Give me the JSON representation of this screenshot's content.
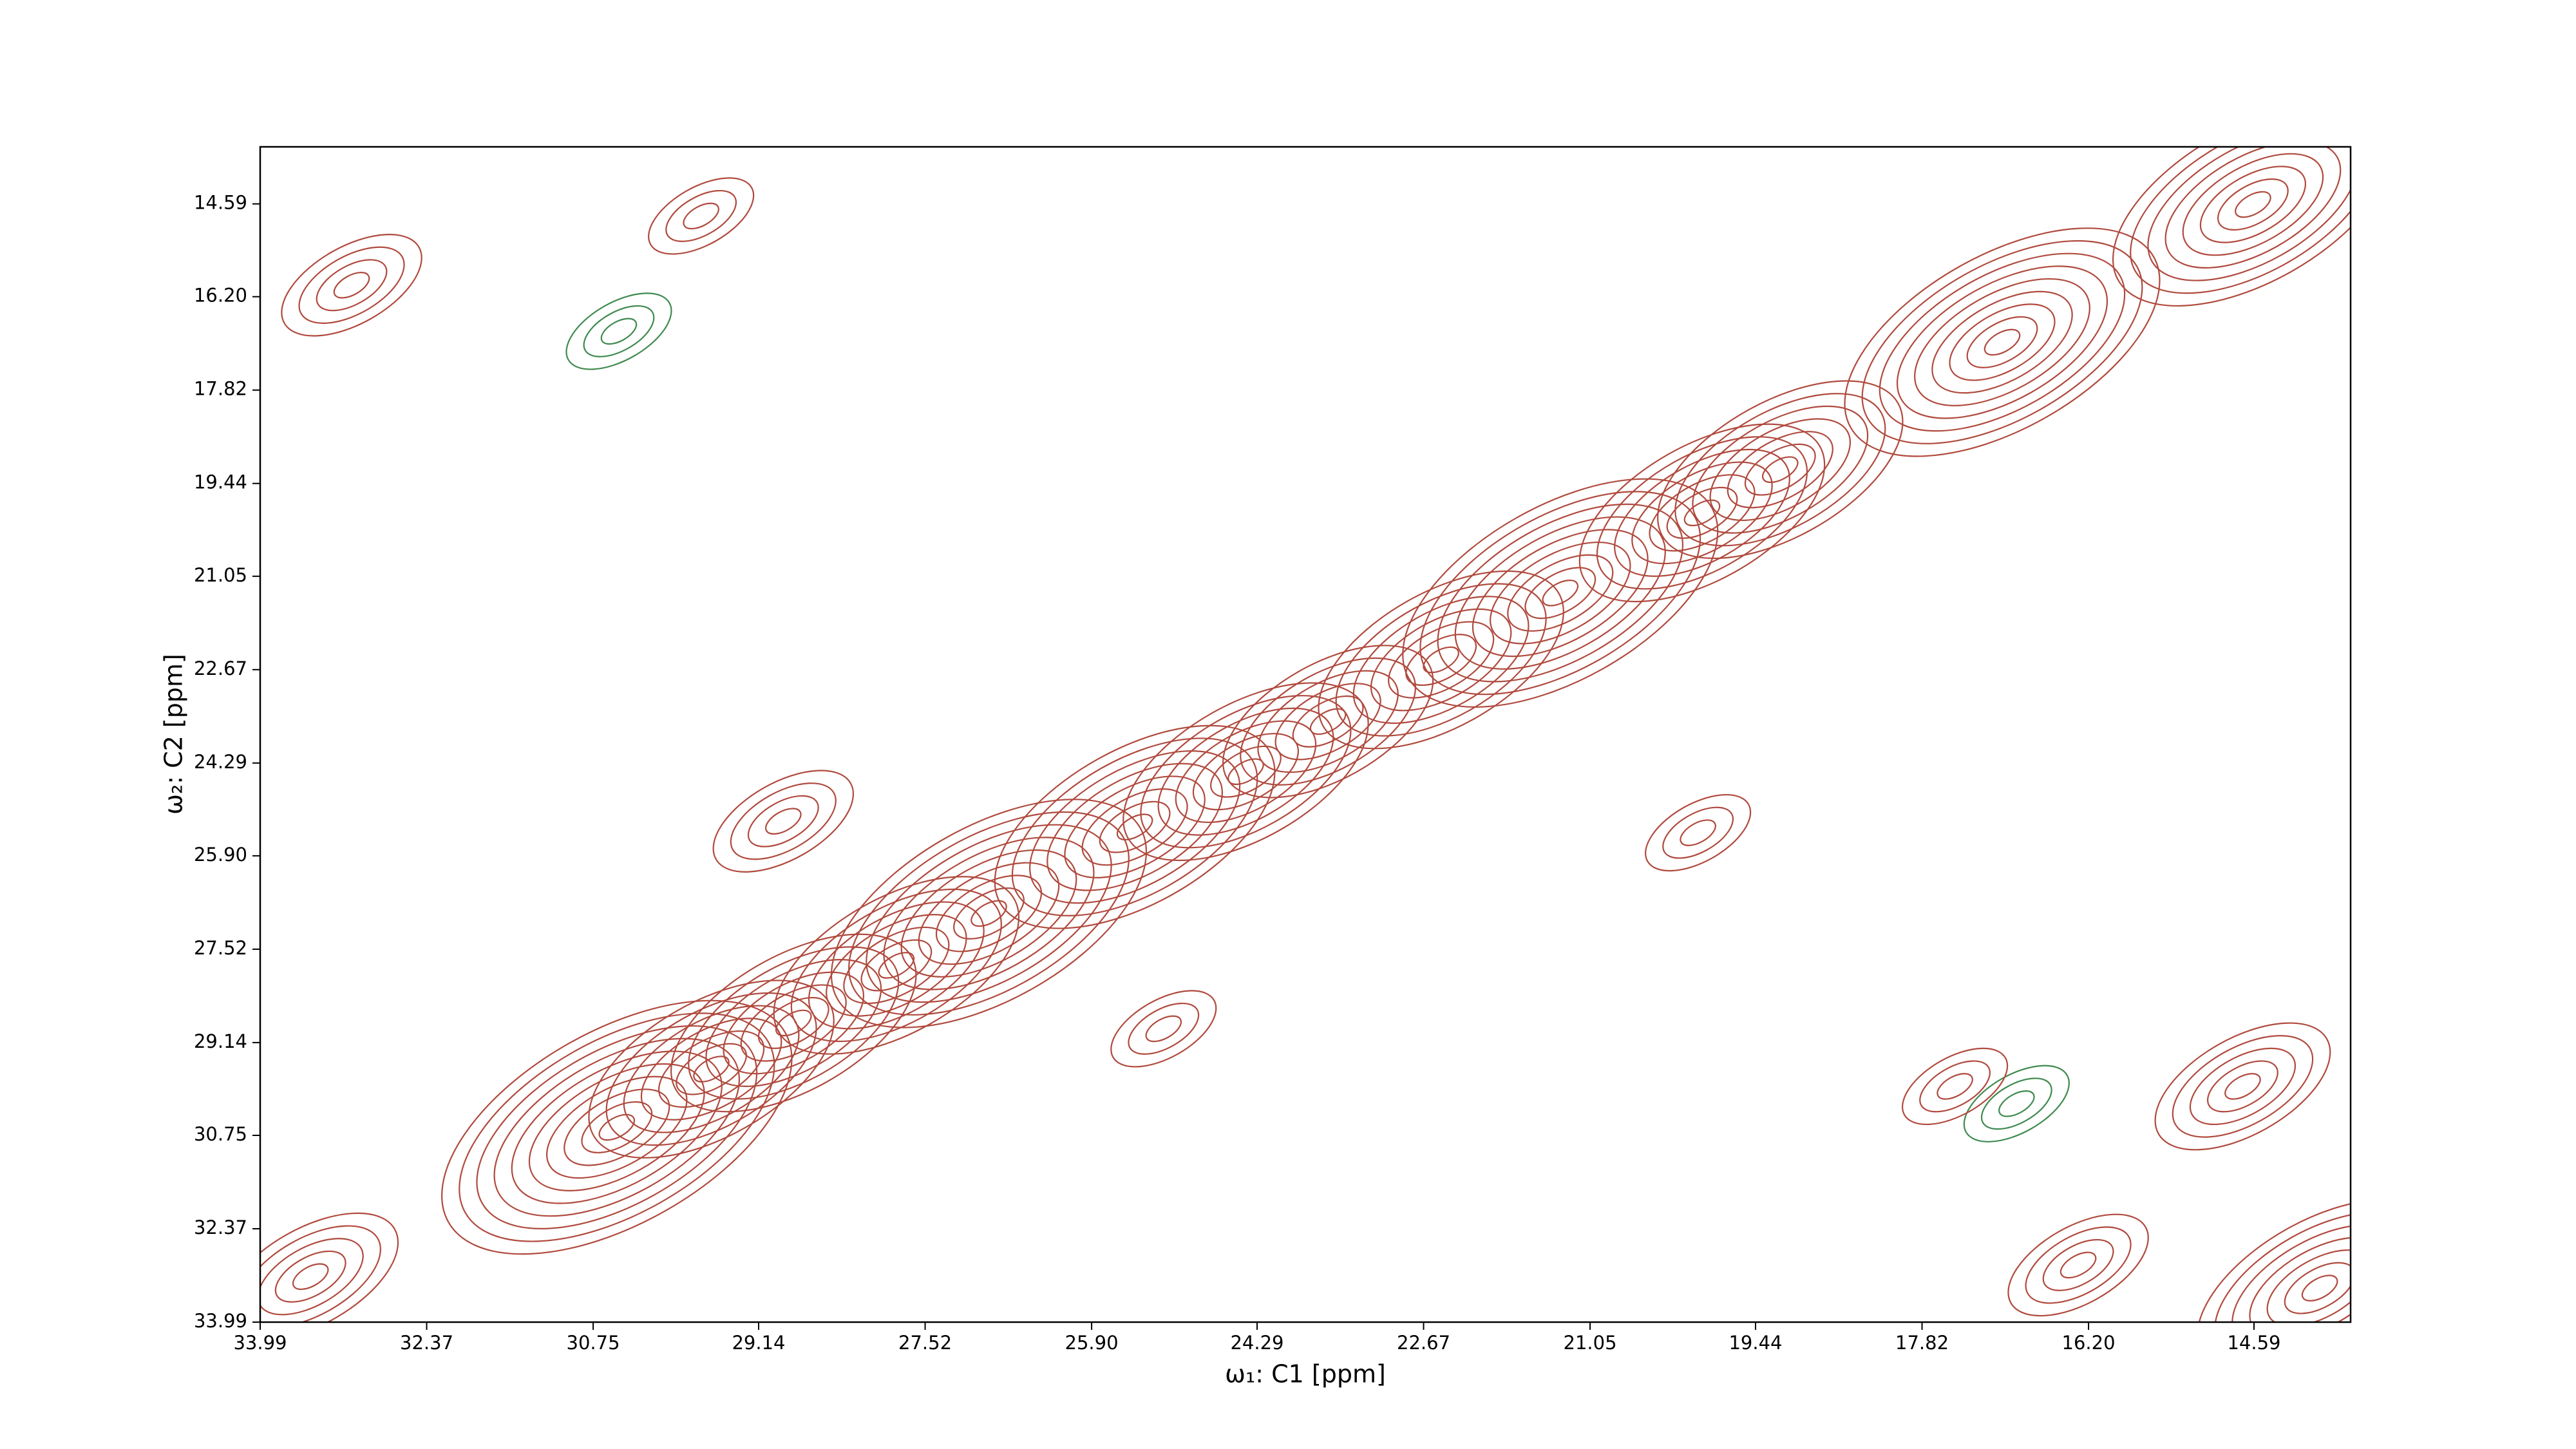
{
  "chart_data": {
    "type": "contour",
    "xlabel": "ω₁: C1 [ppm]",
    "ylabel": "ω₂: C2 [ppm]",
    "xlim": [
      33.99,
      13.65
    ],
    "ylim": [
      33.99,
      13.6
    ],
    "xticks": [
      33.99,
      32.37,
      30.75,
      29.14,
      27.52,
      {
        "value": 25.9,
        "label": "25.90"
      },
      24.29,
      22.67,
      21.05,
      19.44,
      17.82,
      {
        "value": 16.2,
        "label": "16.20"
      },
      14.59
    ],
    "yticks": [
      14.59,
      {
        "value": 16.2,
        "label": "16.20"
      },
      17.82,
      19.44,
      21.05,
      22.67,
      24.29,
      {
        "value": 25.9,
        "label": "25.90"
      },
      27.52,
      29.14,
      30.75,
      32.37,
      33.99
    ],
    "positive_color": "#b04a3e",
    "negative_color": "#3f8a4f",
    "peaks": {
      "x": [
        30.52,
        29.6,
        28.8,
        27.8,
        26.9,
        25.48,
        24.4,
        23.6,
        22.5,
        21.34,
        19.96,
        19.2,
        17.04,
        14.6,
        13.95,
        28.9,
        29.7,
        33.1,
        30.5,
        25.2,
        16.9,
        14.7,
        33.5,
        16.3,
        20.0,
        17.5
      ],
      "y": [
        30.61,
        29.6,
        28.8,
        27.8,
        26.9,
        25.4,
        24.44,
        23.57,
        22.5,
        21.34,
        19.95,
        19.2,
        16.99,
        14.6,
        33.4,
        25.3,
        14.8,
        16.0,
        16.8,
        28.9,
        30.2,
        29.9,
        33.2,
        33.0,
        25.5,
        29.9
      ],
      "height": [
        10,
        7,
        7,
        7,
        9,
        8,
        7,
        6,
        7,
        9,
        7,
        7,
        9,
        8,
        7,
        4,
        3,
        4,
        -3,
        3,
        -3,
        5,
        5,
        4,
        3,
        3
      ]
    }
  }
}
